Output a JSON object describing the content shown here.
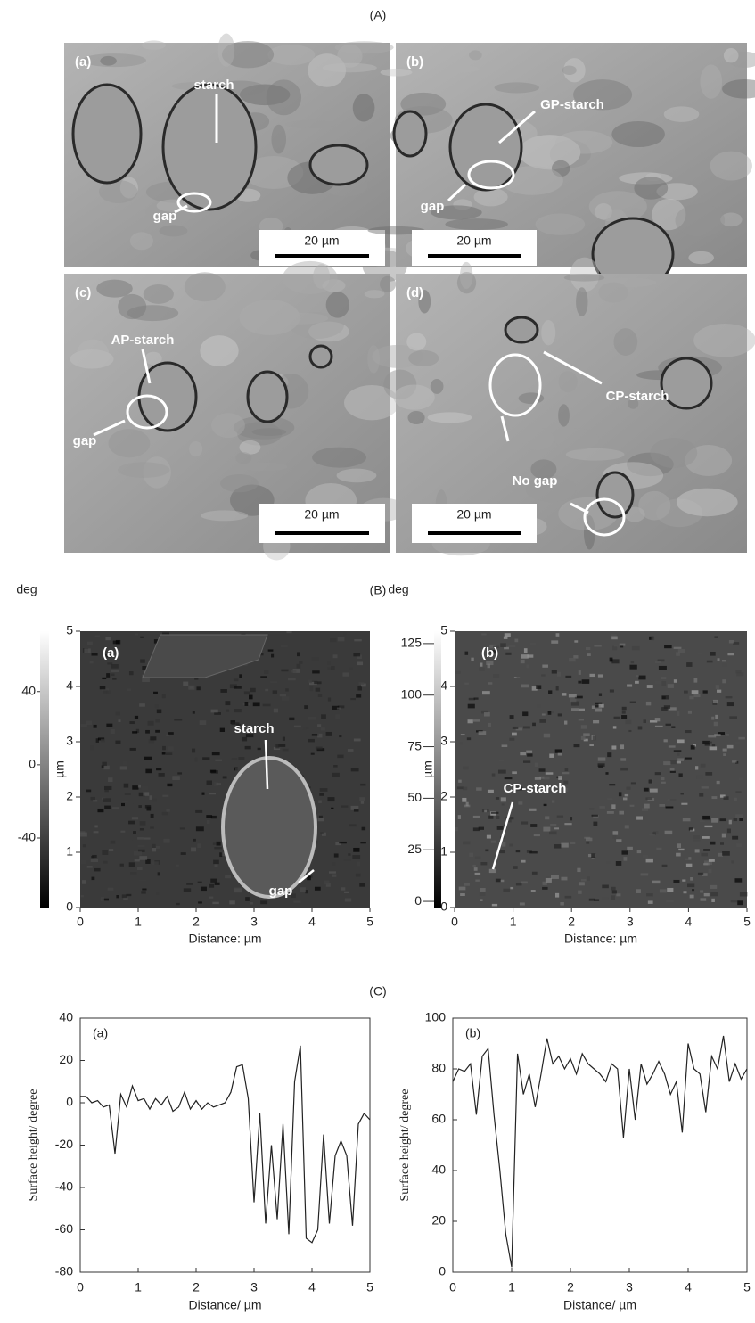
{
  "sections": [
    "(A)",
    "(B)",
    "(C)"
  ],
  "sem_panels": [
    {
      "label": "(a)",
      "annotations": [
        "starch",
        "gap"
      ],
      "scale_bar": "20 µm"
    },
    {
      "label": "(b)",
      "annotations": [
        "GP-starch",
        "gap"
      ],
      "scale_bar": "20 µm"
    },
    {
      "label": "(c)",
      "annotations": [
        "AP-starch",
        "gap"
      ],
      "scale_bar": "20 µm"
    },
    {
      "label": "(d)",
      "annotations": [
        "CP-starch",
        "No gap"
      ],
      "scale_bar": "20 µm"
    }
  ],
  "afm_panels": [
    {
      "label": "(a)",
      "annotations": [
        "starch",
        "gap"
      ],
      "xlim": [
        0,
        5
      ],
      "ylim": [
        0,
        5
      ],
      "xticks": [
        0,
        1,
        2,
        3,
        4,
        5
      ],
      "yticks": [
        0,
        1,
        2,
        3,
        4,
        5
      ],
      "x_label": "Distance: µm",
      "y_label": "µm",
      "colorbar": {
        "unit": "deg",
        "clim": [
          -78,
          73
        ],
        "ticks": [
          -40,
          0,
          40
        ]
      }
    },
    {
      "label": "(b)",
      "annotations": [
        "CP-starch"
      ],
      "xlim": [
        0,
        5
      ],
      "ylim": [
        0,
        5
      ],
      "xticks": [
        0,
        1,
        2,
        3,
        4,
        5
      ],
      "yticks": [
        0,
        1,
        2,
        3,
        4,
        5
      ],
      "x_label": "Distance: µm",
      "y_label": "µm",
      "colorbar": {
        "unit": "deg",
        "clim": [
          -3,
          131
        ],
        "ticks": [
          0,
          25,
          50,
          75,
          100,
          125
        ]
      }
    }
  ],
  "chart_data": [
    {
      "type": "line",
      "panel_label": "(a)",
      "x_label": "Distance/ µm",
      "y_label": "Surface height/ degree",
      "x": [
        0,
        0.1,
        0.2,
        0.3,
        0.4,
        0.5,
        0.6,
        0.7,
        0.8,
        0.9,
        1,
        1.1,
        1.2,
        1.3,
        1.4,
        1.5,
        1.6,
        1.7,
        1.8,
        1.9,
        2,
        2.1,
        2.2,
        2.3,
        2.4,
        2.5,
        2.6,
        2.7,
        2.8,
        2.9,
        3,
        3.1,
        3.2,
        3.3,
        3.4,
        3.5,
        3.6,
        3.7,
        3.8,
        3.9,
        4,
        4.1,
        4.2,
        4.3,
        4.4,
        4.5,
        4.6,
        4.7,
        4.8,
        4.9,
        5
      ],
      "series": [
        {
          "color": "#222222",
          "values": [
            3,
            3,
            0,
            1,
            -2,
            -1,
            -24,
            4,
            -2,
            8,
            1,
            2,
            -3,
            2,
            -1,
            3,
            -4,
            -2,
            5,
            -3,
            1,
            -3,
            0,
            -2,
            -1,
            0,
            5,
            17,
            18,
            2,
            -47,
            -5,
            -57,
            -20,
            -55,
            -10,
            -62,
            10,
            27,
            -64,
            -66,
            -60,
            -15,
            -57,
            -25,
            -18,
            -25,
            -58,
            -10,
            -5,
            -8
          ]
        }
      ],
      "xlim": [
        0,
        5
      ],
      "ylim": [
        -80,
        40
      ],
      "xticks": [
        0,
        1,
        2,
        3,
        4,
        5
      ],
      "yticks": [
        -80,
        -60,
        -40,
        -20,
        0,
        20,
        40
      ]
    },
    {
      "type": "line",
      "panel_label": "(b)",
      "x_label": "Distance/ µm",
      "y_label": "Surface height/ degree",
      "x": [
        0,
        0.1,
        0.2,
        0.3,
        0.4,
        0.5,
        0.6,
        0.7,
        0.8,
        0.9,
        1,
        1.1,
        1.2,
        1.3,
        1.4,
        1.5,
        1.6,
        1.7,
        1.8,
        1.9,
        2,
        2.1,
        2.2,
        2.3,
        2.4,
        2.5,
        2.6,
        2.7,
        2.8,
        2.9,
        3,
        3.1,
        3.2,
        3.3,
        3.4,
        3.5,
        3.6,
        3.7,
        3.8,
        3.9,
        4,
        4.1,
        4.2,
        4.3,
        4.4,
        4.5,
        4.6,
        4.7,
        4.8,
        4.9,
        5
      ],
      "series": [
        {
          "color": "#222222",
          "values": [
            75,
            80,
            79,
            82,
            62,
            85,
            88,
            62,
            40,
            15,
            2,
            86,
            70,
            78,
            65,
            78,
            92,
            82,
            85,
            80,
            84,
            78,
            86,
            82,
            80,
            78,
            75,
            82,
            80,
            53,
            80,
            60,
            82,
            74,
            78,
            83,
            78,
            70,
            75,
            55,
            90,
            80,
            78,
            63,
            85,
            80,
            93,
            75,
            82,
            76,
            80
          ]
        }
      ],
      "xlim": [
        0,
        5
      ],
      "ylim": [
        0,
        100
      ],
      "xticks": [
        0,
        1,
        2,
        3,
        4,
        5
      ],
      "yticks": [
        0,
        20,
        40,
        60,
        80,
        100
      ]
    }
  ]
}
